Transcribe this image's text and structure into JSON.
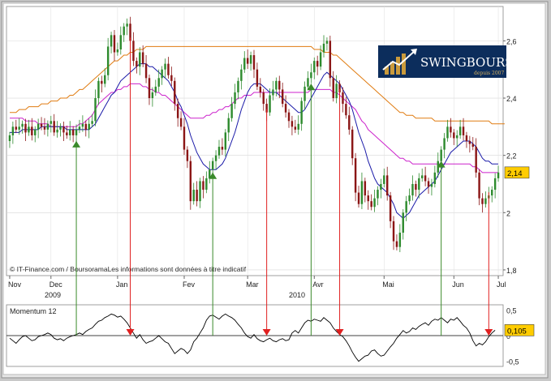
{
  "chart_data": [
    {
      "type": "candlestick",
      "title": "",
      "xlabel": "",
      "ylabel": "",
      "ylim": [
        1.78,
        2.72
      ],
      "y_ticks": [
        1.8,
        2,
        2.2,
        2.4,
        2.6
      ],
      "y_tick_labels": [
        "1,8",
        "2",
        "2,2",
        "2,4",
        "2,6"
      ],
      "month_labels": [
        {
          "label": "Nov",
          "index": 0
        },
        {
          "label": "Dec",
          "index": 13
        },
        {
          "label": "Jan",
          "index": 34
        },
        {
          "label": "Fev",
          "index": 55
        },
        {
          "label": "Mar",
          "index": 75
        },
        {
          "label": "Avr",
          "index": 96
        },
        {
          "label": "Mai",
          "index": 118
        },
        {
          "label": "Jun",
          "index": 140
        },
        {
          "label": "Jul",
          "index": 154
        }
      ],
      "year_labels": [
        {
          "label": "2009",
          "index": 11
        },
        {
          "label": "2010",
          "index": 88
        }
      ],
      "last_value": 2.14,
      "last_value_label": "2,14",
      "grid": true,
      "watermark": "© IT-Finance.com / BoursoramaLes informations sont données à titre indicatif",
      "close": [
        2.27,
        2.3,
        2.29,
        2.3,
        2.31,
        2.28,
        2.3,
        2.27,
        2.29,
        2.31,
        2.3,
        2.29,
        2.31,
        2.32,
        2.28,
        2.29,
        2.3,
        2.28,
        2.27,
        2.29,
        2.27,
        2.29,
        2.3,
        2.31,
        2.29,
        2.31,
        2.32,
        2.4,
        2.46,
        2.45,
        2.48,
        2.58,
        2.62,
        2.56,
        2.57,
        2.62,
        2.65,
        2.66,
        2.6,
        2.53,
        2.51,
        2.56,
        2.52,
        2.47,
        2.4,
        2.42,
        2.44,
        2.47,
        2.5,
        2.52,
        2.48,
        2.46,
        2.38,
        2.33,
        2.3,
        2.22,
        2.18,
        2.04,
        2.08,
        2.04,
        2.11,
        2.08,
        2.12,
        2.15,
        2.18,
        2.2,
        2.23,
        2.22,
        2.28,
        2.33,
        2.38,
        2.42,
        2.46,
        2.5,
        2.54,
        2.52,
        2.55,
        2.5,
        2.44,
        2.42,
        2.38,
        2.35,
        2.41,
        2.43,
        2.46,
        2.43,
        2.38,
        2.35,
        2.32,
        2.3,
        2.29,
        2.31,
        2.39,
        2.44,
        2.47,
        2.49,
        2.53,
        2.51,
        2.56,
        2.59,
        2.6,
        2.47,
        2.4,
        2.45,
        2.42,
        2.38,
        2.34,
        2.29,
        2.19,
        2.07,
        2.03,
        2.11,
        2.06,
        2.04,
        2.02,
        2.05,
        2.08,
        2.1,
        2.13,
        2.06,
        1.97,
        1.9,
        1.88,
        1.93,
        2.0,
        2.04,
        2.06,
        2.1,
        2.08,
        2.12,
        2.13,
        2.11,
        2.09,
        2.1,
        2.14,
        2.18,
        2.22,
        2.26,
        2.3,
        2.28,
        2.26,
        2.27,
        2.3,
        2.27,
        2.25,
        2.24,
        2.23,
        2.14,
        2.05,
        2.03,
        2.05,
        2.06,
        2.08,
        2.12,
        2.14
      ],
      "ma_short": [
        2.28,
        2.28,
        2.28,
        2.28,
        2.29,
        2.29,
        2.29,
        2.29,
        2.29,
        2.29,
        2.3,
        2.3,
        2.3,
        2.3,
        2.3,
        2.3,
        2.3,
        2.3,
        2.29,
        2.29,
        2.29,
        2.29,
        2.29,
        2.29,
        2.29,
        2.29,
        2.3,
        2.31,
        2.33,
        2.35,
        2.37,
        2.39,
        2.41,
        2.42,
        2.44,
        2.46,
        2.47,
        2.48,
        2.49,
        2.5,
        2.51,
        2.52,
        2.52,
        2.52,
        2.51,
        2.51,
        2.5,
        2.49,
        2.48,
        2.47,
        2.46,
        2.44,
        2.42,
        2.39,
        2.37,
        2.34,
        2.31,
        2.27,
        2.24,
        2.21,
        2.19,
        2.17,
        2.16,
        2.15,
        2.15,
        2.15,
        2.16,
        2.17,
        2.19,
        2.22,
        2.25,
        2.28,
        2.32,
        2.36,
        2.39,
        2.42,
        2.44,
        2.45,
        2.45,
        2.45,
        2.44,
        2.43,
        2.42,
        2.42,
        2.42,
        2.41,
        2.4,
        2.39,
        2.38,
        2.37,
        2.36,
        2.35,
        2.35,
        2.36,
        2.38,
        2.4,
        2.42,
        2.44,
        2.46,
        2.48,
        2.49,
        2.48,
        2.47,
        2.46,
        2.45,
        2.43,
        2.41,
        2.39,
        2.36,
        2.32,
        2.28,
        2.25,
        2.22,
        2.18,
        2.15,
        2.12,
        2.1,
        2.09,
        2.08,
        2.07,
        2.05,
        2.03,
        2.0,
        1.99,
        1.98,
        1.99,
        2.0,
        2.02,
        2.04,
        2.06,
        2.07,
        2.08,
        2.09,
        2.1,
        2.11,
        2.13,
        2.15,
        2.17,
        2.19,
        2.21,
        2.22,
        2.23,
        2.24,
        2.25,
        2.25,
        2.25,
        2.24,
        2.23,
        2.21,
        2.19,
        2.18,
        2.18,
        2.17,
        2.17,
        2.17
      ],
      "ma_medium": [
        2.33,
        2.33,
        2.33,
        2.33,
        2.33,
        2.32,
        2.32,
        2.32,
        2.32,
        2.31,
        2.31,
        2.31,
        2.31,
        2.3,
        2.3,
        2.3,
        2.3,
        2.3,
        2.3,
        2.3,
        2.3,
        2.3,
        2.31,
        2.31,
        2.32,
        2.33,
        2.34,
        2.36,
        2.38,
        2.39,
        2.4,
        2.41,
        2.42,
        2.42,
        2.43,
        2.43,
        2.44,
        2.44,
        2.45,
        2.45,
        2.45,
        2.45,
        2.44,
        2.44,
        2.43,
        2.43,
        2.42,
        2.42,
        2.41,
        2.41,
        2.4,
        2.39,
        2.38,
        2.37,
        2.36,
        2.35,
        2.34,
        2.33,
        2.33,
        2.33,
        2.33,
        2.33,
        2.34,
        2.34,
        2.35,
        2.35,
        2.36,
        2.36,
        2.37,
        2.37,
        2.38,
        2.39,
        2.4,
        2.4,
        2.41,
        2.41,
        2.41,
        2.42,
        2.42,
        2.42,
        2.42,
        2.42,
        2.42,
        2.42,
        2.42,
        2.42,
        2.42,
        2.42,
        2.42,
        2.42,
        2.42,
        2.42,
        2.42,
        2.42,
        2.42,
        2.43,
        2.43,
        2.43,
        2.43,
        2.43,
        2.43,
        2.43,
        2.42,
        2.42,
        2.41,
        2.4,
        2.39,
        2.38,
        2.37,
        2.36,
        2.34,
        2.32,
        2.31,
        2.29,
        2.28,
        2.27,
        2.26,
        2.25,
        2.24,
        2.23,
        2.22,
        2.21,
        2.2,
        2.19,
        2.19,
        2.18,
        2.18,
        2.17,
        2.17,
        2.17,
        2.17,
        2.17,
        2.17,
        2.17,
        2.17,
        2.17,
        2.17,
        2.17,
        2.17,
        2.17,
        2.17,
        2.17,
        2.17,
        2.17,
        2.17,
        2.17,
        2.16,
        2.16,
        2.15,
        2.14,
        2.14,
        2.14,
        2.14,
        2.14,
        2.14
      ],
      "ma_long": [
        2.35,
        2.35,
        2.35,
        2.36,
        2.36,
        2.36,
        2.37,
        2.37,
        2.37,
        2.37,
        2.38,
        2.38,
        2.38,
        2.39,
        2.39,
        2.39,
        2.4,
        2.4,
        2.4,
        2.41,
        2.41,
        2.42,
        2.43,
        2.43,
        2.44,
        2.45,
        2.46,
        2.47,
        2.48,
        2.49,
        2.5,
        2.51,
        2.52,
        2.53,
        2.53,
        2.54,
        2.55,
        2.55,
        2.56,
        2.56,
        2.57,
        2.57,
        2.57,
        2.58,
        2.58,
        2.58,
        2.58,
        2.58,
        2.58,
        2.58,
        2.58,
        2.58,
        2.58,
        2.58,
        2.58,
        2.58,
        2.58,
        2.58,
        2.58,
        2.58,
        2.58,
        2.58,
        2.58,
        2.58,
        2.58,
        2.58,
        2.58,
        2.58,
        2.58,
        2.58,
        2.58,
        2.58,
        2.58,
        2.58,
        2.58,
        2.58,
        2.58,
        2.58,
        2.58,
        2.58,
        2.58,
        2.58,
        2.58,
        2.58,
        2.58,
        2.58,
        2.58,
        2.58,
        2.58,
        2.58,
        2.58,
        2.58,
        2.58,
        2.58,
        2.58,
        2.58,
        2.57,
        2.57,
        2.57,
        2.56,
        2.56,
        2.56,
        2.55,
        2.55,
        2.54,
        2.53,
        2.52,
        2.51,
        2.5,
        2.49,
        2.48,
        2.47,
        2.46,
        2.45,
        2.44,
        2.43,
        2.42,
        2.41,
        2.4,
        2.39,
        2.38,
        2.37,
        2.36,
        2.35,
        2.35,
        2.34,
        2.34,
        2.34,
        2.33,
        2.33,
        2.33,
        2.33,
        2.33,
        2.33,
        2.32,
        2.32,
        2.32,
        2.32,
        2.32,
        2.32,
        2.32,
        2.32,
        2.32,
        2.32,
        2.32,
        2.32,
        2.32,
        2.32,
        2.32,
        2.32,
        2.32,
        2.32,
        2.31,
        2.31,
        2.31,
        2.31,
        2.31
      ],
      "buy_signal_indices": [
        21,
        64,
        95,
        136
      ],
      "sell_signal_indices": [
        38,
        81,
        104,
        151
      ]
    },
    {
      "type": "line",
      "title": "Momentum 12",
      "ylim": [
        -0.6,
        0.6
      ],
      "y_ticks": [
        -0.5,
        0,
        0.5
      ],
      "y_tick_labels": [
        "-0,5",
        "0",
        "0,5"
      ],
      "last_value": 0.105,
      "last_value_label": "0,105",
      "values": [
        -0.05,
        -0.1,
        -0.15,
        -0.08,
        -0.02,
        0.0,
        -0.05,
        -0.1,
        -0.08,
        -0.02,
        0.0,
        0.02,
        0.05,
        0.02,
        -0.05,
        -0.08,
        -0.06,
        -0.1,
        -0.05,
        -0.02,
        0.0,
        0.02,
        0.05,
        0.02,
        0.08,
        0.12,
        0.15,
        0.22,
        0.28,
        0.3,
        0.35,
        0.38,
        0.42,
        0.4,
        0.36,
        0.38,
        0.32,
        0.25,
        0.15,
        0.05,
        -0.05,
        0.02,
        -0.08,
        -0.15,
        -0.12,
        -0.1,
        -0.05,
        0.0,
        -0.06,
        -0.12,
        -0.15,
        -0.25,
        -0.35,
        -0.3,
        -0.25,
        -0.28,
        -0.35,
        -0.28,
        -0.12,
        -0.05,
        0.05,
        0.15,
        0.3,
        0.38,
        0.4,
        0.36,
        0.32,
        0.38,
        0.42,
        0.38,
        0.35,
        0.3,
        0.22,
        0.15,
        0.05,
        -0.02,
        -0.05,
        0.02,
        -0.06,
        -0.1,
        -0.12,
        -0.08,
        -0.05,
        -0.1,
        -0.12,
        -0.08,
        -0.06,
        -0.1,
        -0.08,
        0.05,
        0.1,
        0.05,
        0.15,
        0.25,
        0.3,
        0.28,
        0.32,
        0.3,
        0.28,
        0.35,
        0.3,
        0.25,
        0.15,
        0.08,
        0.02,
        -0.02,
        -0.1,
        -0.2,
        -0.32,
        -0.42,
        -0.5,
        -0.45,
        -0.4,
        -0.38,
        -0.3,
        -0.28,
        -0.35,
        -0.4,
        -0.38,
        -0.3,
        -0.22,
        -0.15,
        -0.05,
        0.02,
        0.1,
        0.05,
        0.08,
        0.15,
        0.12,
        0.18,
        0.22,
        0.25,
        0.2,
        0.28,
        0.32,
        0.3,
        0.35,
        0.3,
        0.25,
        0.32,
        0.3,
        0.35,
        0.28,
        0.2,
        0.15,
        0.05,
        -0.1,
        -0.2,
        -0.15,
        -0.18,
        -0.12,
        -0.02,
        0.05,
        0.105
      ]
    }
  ],
  "logo": {
    "name": "SWINGBOURSE",
    "tagline": "depuis 2007",
    "bg_color": "#0c2d5c",
    "icon": "chart-growth-icon"
  },
  "colors": {
    "bull": "#2e8b2e",
    "bear": "#8b1616",
    "ma_short": "#1a1aa8",
    "ma_medium": "#cc22cc",
    "ma_long": "#e07b10",
    "buy_arrow": "#3a8a2a",
    "sell_arrow": "#e02020",
    "value_box": "#ffcc00"
  }
}
